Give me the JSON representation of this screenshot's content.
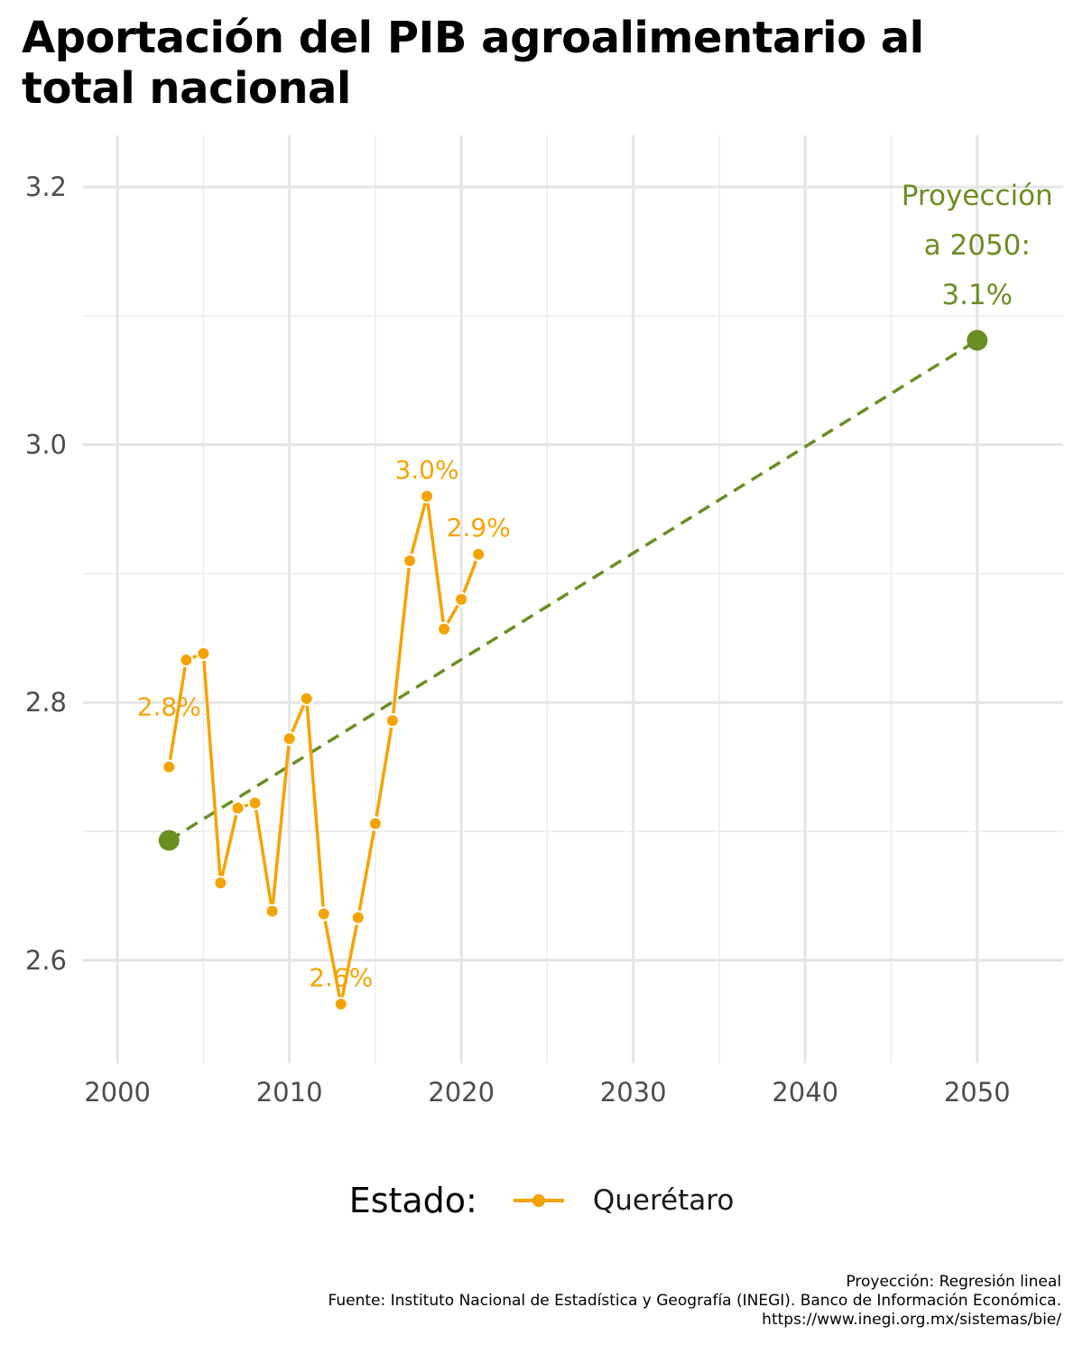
{
  "title": {
    "line1": "Aportación del PIB agroalimentario al",
    "line2": "total nacional"
  },
  "chart_data": {
    "type": "line",
    "title": "Aportación del PIB agroalimentario al total nacional",
    "xlabel": "",
    "ylabel": "",
    "xlim": [
      1998,
      2055
    ],
    "ylim": [
      2.52,
      3.24
    ],
    "x_ticks": [
      2000,
      2010,
      2020,
      2030,
      2040,
      2050
    ],
    "x_tick_labels": [
      "2000",
      "2010",
      "2020",
      "2030",
      "2040",
      "2050"
    ],
    "y_ticks": [
      2.6,
      2.8,
      3.0,
      3.2
    ],
    "y_tick_labels": [
      "2.6",
      "2.8",
      "3.0",
      "3.2"
    ],
    "grid": true,
    "series": [
      {
        "name": "Querétaro",
        "color": "#F5A300",
        "x": [
          2003,
          2004,
          2005,
          2006,
          2007,
          2008,
          2009,
          2010,
          2011,
          2012,
          2013,
          2014,
          2015,
          2016,
          2017,
          2018,
          2019,
          2020,
          2021
        ],
        "values": [
          2.75,
          2.833,
          2.838,
          2.66,
          2.718,
          2.722,
          2.638,
          2.772,
          2.803,
          2.636,
          2.566,
          2.633,
          2.706,
          2.786,
          2.91,
          2.96,
          2.857,
          2.88,
          2.915
        ]
      }
    ],
    "projection": {
      "color": "#6B8E23",
      "style": "dashed",
      "x": [
        2003,
        2050
      ],
      "values": [
        2.693,
        3.081
      ]
    },
    "annotations": [
      {
        "text": "2.8%",
        "x": 2003,
        "y": 2.75,
        "color": "#F5A300"
      },
      {
        "text": "2.6%",
        "x": 2013,
        "y": 2.566,
        "color": "#F5A300"
      },
      {
        "text": "3.0%",
        "x": 2018,
        "y": 2.96,
        "color": "#F5A300"
      },
      {
        "text": "2.9%",
        "x": 2021,
        "y": 2.915,
        "color": "#F5A300"
      },
      {
        "lines": [
          "Proyección",
          "a 2050:",
          "3.1%"
        ],
        "x": 2050,
        "y": 3.081,
        "color": "#6B8E23"
      }
    ],
    "legend": {
      "title": "Estado:",
      "position": "bottom",
      "entries": [
        {
          "label": "Querétaro",
          "color": "#F5A300"
        }
      ]
    }
  },
  "caption": {
    "line1": "Proyección: Regresión lineal",
    "line2": "Fuente: Instituto Nacional de Estadística y Geografía (INEGI). Banco de Información Económica.",
    "line3": "https://www.inegi.org.mx/sistemas/bie/"
  }
}
